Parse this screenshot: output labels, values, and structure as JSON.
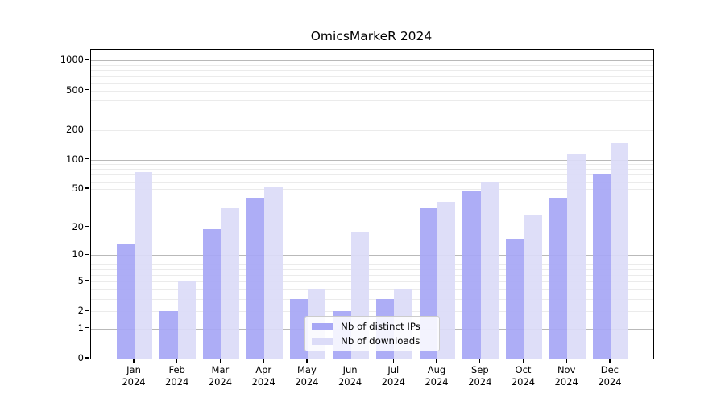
{
  "title": "OmicsMarkeR 2024",
  "chart_data": {
    "type": "bar",
    "title": "OmicsMarkeR 2024",
    "categories": [
      "Jan 2024",
      "Feb 2024",
      "Mar 2024",
      "Apr 2024",
      "May 2024",
      "Jun 2024",
      "Jul 2024",
      "Aug 2024",
      "Sep 2024",
      "Oct 2024",
      "Nov 2024",
      "Dec 2024"
    ],
    "series": [
      {
        "name": "Nb of distinct IPs",
        "color": "#a7a7f5",
        "values": [
          13,
          2,
          19,
          41,
          3,
          2,
          3,
          32,
          48,
          15,
          41,
          70
        ]
      },
      {
        "name": "Nb of downloads",
        "color": "#dcdcf8",
        "values": [
          75,
          5,
          32,
          53,
          4,
          18,
          4,
          37,
          60,
          27,
          113,
          148
        ]
      }
    ],
    "xlabel": "",
    "ylabel": "",
    "yscale": "log1p",
    "ylim": [
      0,
      1285
    ],
    "yticks": [
      0,
      1,
      2,
      5,
      10,
      20,
      50,
      100,
      200,
      500,
      1000
    ],
    "major_gridlines": [
      1,
      10,
      100,
      1000
    ],
    "minor_gridlines": [
      2,
      3,
      4,
      5,
      6,
      7,
      8,
      9,
      20,
      30,
      40,
      50,
      60,
      70,
      80,
      90,
      200,
      300,
      400,
      500,
      600,
      700,
      800,
      900
    ],
    "grid": true,
    "legend_position": "lower center"
  },
  "legend": {
    "items": [
      {
        "label": "Nb of distinct IPs",
        "color": "#a7a7f5"
      },
      {
        "label": "Nb of downloads",
        "color": "#dcdcf8"
      }
    ]
  },
  "colors": {
    "background": "#ffffff",
    "bar_distinct_ips": "#a7a7f5",
    "bar_downloads": "#dcdcf8",
    "gridline_major": "#b9b9b9",
    "gridline_minor": "#ebebeb",
    "axis": "#000000",
    "text": "#000000",
    "legend_border": "#cccccc"
  }
}
